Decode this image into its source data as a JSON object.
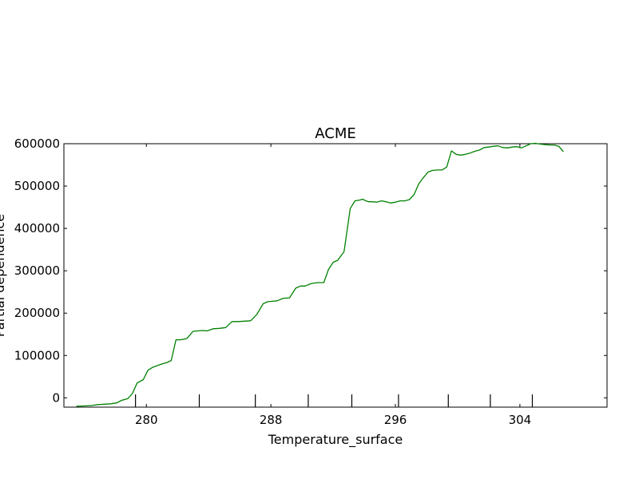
{
  "chart_data": {
    "type": "line",
    "title": "ACME",
    "xlabel": "Temperature_surface",
    "ylabel": "Partial dependence",
    "xlim": [
      274.7,
      309.6
    ],
    "ylim": [
      -22000,
      600000
    ],
    "x_ticks": [
      280,
      288,
      296,
      304
    ],
    "y_ticks": [
      0,
      100000,
      200000,
      300000,
      400000,
      500000,
      600000
    ],
    "rug": [
      279.3,
      283.4,
      287.0,
      290.4,
      293.2,
      296.2,
      299.4,
      302.1,
      304.8
    ],
    "grid": false,
    "series": [
      {
        "color": "#008000",
        "x": [
          275.5,
          276.1,
          276.5,
          276.9,
          277.3,
          277.7,
          278.1,
          278.4,
          278.8,
          279.1,
          279.4,
          279.8,
          280.1,
          280.4,
          280.7,
          281.0,
          281.3,
          281.6,
          281.9,
          282.2,
          282.6,
          283.0,
          283.3,
          283.6,
          283.9,
          284.3,
          284.7,
          285.1,
          285.5,
          285.9,
          286.3,
          286.7,
          287.1,
          287.5,
          287.8,
          288.1,
          288.4,
          288.8,
          289.2,
          289.6,
          289.9,
          290.2,
          290.6,
          291.0,
          291.4,
          291.7,
          292.0,
          292.3,
          292.7,
          293.1,
          293.4,
          293.7,
          293.9,
          294.1,
          294.3,
          294.5,
          294.8,
          295.1,
          295.4,
          295.7,
          296.0,
          296.3,
          296.6,
          296.9,
          297.2,
          297.5,
          297.8,
          298.1,
          298.4,
          298.7,
          299.0,
          299.3,
          299.6,
          299.9,
          300.2,
          300.5,
          300.8,
          301.1,
          301.4,
          301.7,
          302.0,
          302.3,
          302.6,
          302.9,
          303.2,
          303.5,
          303.8,
          304.1,
          304.4,
          304.7,
          305.0,
          305.3,
          305.6,
          305.9,
          306.2,
          306.5,
          306.8
        ],
        "values": [
          -20000,
          -19000,
          -18000,
          -16000,
          -15000,
          -14000,
          -12000,
          -6000,
          -2000,
          10000,
          35000,
          43000,
          65000,
          72000,
          76000,
          80000,
          83000,
          88000,
          137000,
          137000,
          140000,
          157000,
          158000,
          159000,
          158000,
          163000,
          164000,
          166000,
          180000,
          180000,
          181000,
          182000,
          197000,
          222000,
          227000,
          228000,
          229000,
          235000,
          236000,
          259000,
          264000,
          264000,
          270000,
          272000,
          272000,
          303000,
          320000,
          325000,
          345000,
          447000,
          465000,
          467000,
          469000,
          465000,
          463000,
          463000,
          462000,
          465000,
          463000,
          460000,
          462000,
          465000,
          465000,
          468000,
          480000,
          505000,
          520000,
          533000,
          537000,
          538000,
          538000,
          545000,
          583000,
          575000,
          573000,
          575000,
          578000,
          582000,
          585000,
          591000,
          592000,
          594000,
          595000,
          591000,
          590000,
          592000,
          593000,
          590000,
          595000,
          600000,
          601000,
          599000,
          598000,
          597000,
          597000,
          594000,
          581000
        ]
      }
    ]
  }
}
